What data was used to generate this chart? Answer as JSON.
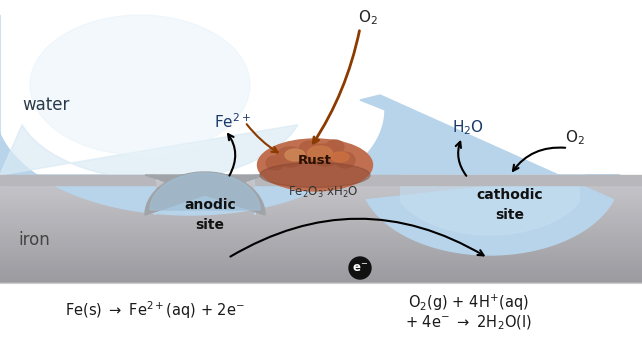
{
  "water_blue_light": "#daeaf5",
  "water_blue_mid": "#b8d4ea",
  "water_blue_dark": "#8ab8d8",
  "iron_gray_light": "#c8c8c8",
  "iron_gray_dark": "#909090",
  "iron_surface_color": "#b8b8bc",
  "pit_color": "#a0a4a8",
  "rust_base": "#c07050",
  "rust_dark": "#a05838",
  "rust_light": "#d08868",
  "bg_white": "#ffffff",
  "eq_bg": "#f5f5f5",
  "text_dark": "#1a1a1a",
  "text_water": "#2a3a4a",
  "text_blue": "#1a3a6a",
  "arrow_brown": "#8B3A00",
  "arrow_black": "#111111",
  "label_water": "water",
  "label_iron": "iron",
  "label_rust": "Rust",
  "label_fe2o3": "Fe$_2$O$_3$·xH$_2$O",
  "label_anodic": "anodic\nsite",
  "label_cathodic": "cathodic\nsite",
  "label_fe2plus": "Fe$^{2+}$",
  "label_h2o": "H$_2$O",
  "label_o2_top": "O$_2$",
  "label_o2_right": "O$_2$",
  "label_eminus": "e$^{-}$",
  "eq_left": "Fe(s) $\\rightarrow$ Fe$^{2+}$(aq) + 2e$^{-}$",
  "eq_right1": "O$_2$(g) + 4H$^{+}$(aq)",
  "eq_right2": "+ 4e$^{-}$ $\\rightarrow$ 2H$_2$O(l)"
}
